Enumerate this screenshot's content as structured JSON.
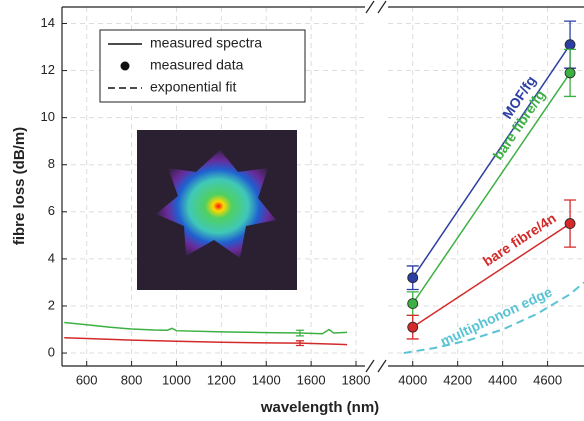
{
  "chart_data": {
    "type": "line",
    "xlabel": "wavelength (nm)",
    "ylabel": "fibre loss (dB/m)",
    "ylim": [
      -0.55,
      14.7
    ],
    "yticks": [
      0,
      2,
      4,
      6,
      8,
      10,
      12,
      14
    ],
    "grid": true,
    "panels": [
      {
        "xlim": [
          490,
          1840
        ],
        "xticks": [
          600,
          800,
          1000,
          1200,
          1400,
          1600,
          1800
        ]
      },
      {
        "xlim": [
          3890,
          4762
        ],
        "xticks": [
          4000,
          4200,
          4400,
          4600
        ]
      }
    ],
    "legend": [
      {
        "name": "measured spectra",
        "style": "solid"
      },
      {
        "name": "measured data",
        "style": "dot"
      },
      {
        "name": "exponential fit",
        "style": "dashed"
      }
    ],
    "series": [
      {
        "name": "MOF/fg",
        "color": "#2e3fa3",
        "panel": 1,
        "style": "data",
        "x": [
          4000,
          4700
        ],
        "values": [
          3.2,
          13.1
        ],
        "errors": [
          0.5,
          1.0
        ]
      },
      {
        "name": "bare fibre/fg",
        "color": "#3cb043",
        "panel": 1,
        "style": "data",
        "x": [
          4000,
          4700
        ],
        "values": [
          2.1,
          11.9
        ],
        "errors": [
          0.5,
          1.0
        ]
      },
      {
        "name": "bare fibre/4n",
        "color": "#d42a2a",
        "panel": 1,
        "style": "data",
        "x": [
          4000,
          4700
        ],
        "values": [
          1.1,
          5.5
        ],
        "errors": [
          0.5,
          1.0
        ]
      },
      {
        "name": "multiphonon edge",
        "color": "#5bc4d4",
        "panel": 1,
        "style": "dashed",
        "x": [
          3960,
          4100,
          4250,
          4400,
          4550,
          4700,
          4762
        ],
        "values": [
          0,
          0.22,
          0.55,
          1.0,
          1.65,
          2.5,
          3.0
        ]
      },
      {
        "color": "#3cb043",
        "panel": 0,
        "style": "solid",
        "x": [
          500,
          600,
          700,
          800,
          900,
          960,
          980,
          1000,
          1200,
          1400,
          1550,
          1650,
          1680,
          1700,
          1760
        ],
        "values": [
          1.3,
          1.2,
          1.1,
          1.02,
          0.98,
          0.97,
          1.05,
          0.95,
          0.9,
          0.87,
          0.85,
          0.82,
          1.0,
          0.85,
          0.88
        ],
        "errors": [
          null,
          null,
          null,
          null,
          null,
          null,
          null,
          null,
          null,
          null,
          0.12,
          null,
          null,
          null,
          null
        ]
      },
      {
        "color": "#d42a2a",
        "panel": 0,
        "style": "solid",
        "x": [
          500,
          600,
          800,
          1000,
          1200,
          1400,
          1550,
          1700,
          1760
        ],
        "values": [
          0.65,
          0.62,
          0.55,
          0.5,
          0.46,
          0.43,
          0.42,
          0.38,
          0.36
        ],
        "errors": [
          null,
          null,
          null,
          null,
          null,
          null,
          0.1,
          null,
          null
        ]
      }
    ]
  }
}
